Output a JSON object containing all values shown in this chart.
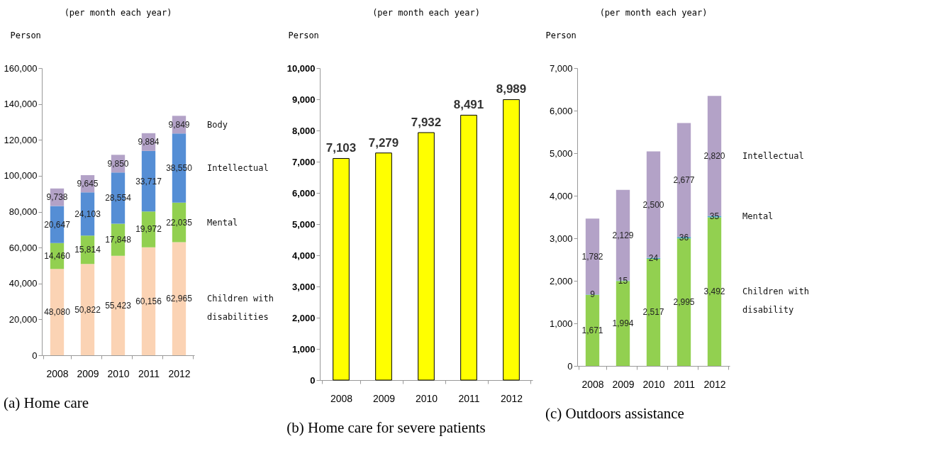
{
  "chart_data": [
    {
      "type": "bar",
      "title": "(a) Home care",
      "subtitle": "(per month each year)",
      "ylabel": "Person",
      "categories": [
        "2008",
        "2009",
        "2010",
        "2011",
        "2012"
      ],
      "stacked": true,
      "ylim": [
        0,
        160000
      ],
      "yticks": [
        {
          "value": 0,
          "label": "0"
        },
        {
          "value": 20000,
          "label": "20,000"
        },
        {
          "value": 40000,
          "label": "40,000"
        },
        {
          "value": 60000,
          "label": "60,000"
        },
        {
          "value": 80000,
          "label": "80,000"
        },
        {
          "value": 100000,
          "label": "100,000"
        },
        {
          "value": 120000,
          "label": "120,000"
        },
        {
          "value": 140000,
          "label": "140,000"
        },
        {
          "value": 160000,
          "label": "160,000"
        }
      ],
      "grid": false,
      "series": [
        {
          "name": "Children with disabilities",
          "color": "#fbd3b4",
          "values": [
            48080,
            50822,
            55423,
            60156,
            62965
          ],
          "value_labels": [
            "48,080",
            "50,822",
            "55,423",
            "60,156",
            "62,965"
          ]
        },
        {
          "name": "Mental",
          "color": "#92d050",
          "values": [
            14460,
            15814,
            17848,
            19972,
            22035
          ],
          "value_labels": [
            "14,460",
            "15,814",
            "17,848",
            "19,972",
            "22,035"
          ]
        },
        {
          "name": "Intellectual",
          "color": "#558ed5",
          "values": [
            20647,
            24103,
            28554,
            33717,
            38550
          ],
          "value_labels": [
            "20,647",
            "24,103",
            "28,554",
            "33,717",
            "38,550"
          ]
        },
        {
          "name": "Body",
          "color": "#b3a2c7",
          "values": [
            9738,
            9645,
            9850,
            9884,
            9849
          ],
          "value_labels": [
            "9,738",
            "9,645",
            "9,850",
            "9,884",
            "9,849"
          ]
        }
      ]
    },
    {
      "type": "bar",
      "title": "(b) Home care for severe patients",
      "subtitle": "(per month each year)",
      "ylabel": "Person",
      "categories": [
        "2008",
        "2009",
        "2010",
        "2011",
        "2012"
      ],
      "ylim": [
        0,
        10000
      ],
      "yticks": [
        {
          "value": 0,
          "label": "0"
        },
        {
          "value": 1000,
          "label": "1,000"
        },
        {
          "value": 2000,
          "label": "2,000"
        },
        {
          "value": 3000,
          "label": "3,000"
        },
        {
          "value": 4000,
          "label": "4,000"
        },
        {
          "value": 5000,
          "label": "5,000"
        },
        {
          "value": 6000,
          "label": "6,000"
        },
        {
          "value": 7000,
          "label": "7,000"
        },
        {
          "value": 8000,
          "label": "8,000"
        },
        {
          "value": 9000,
          "label": "9,000"
        },
        {
          "value": 10000,
          "label": "10,000"
        }
      ],
      "grid": false,
      "series": [
        {
          "color": "#ffff00",
          "values": [
            7103,
            7279,
            7932,
            8491,
            8989
          ],
          "value_labels": [
            "7,103",
            "7,279",
            "7,932",
            "8,491",
            "8,989"
          ]
        }
      ]
    },
    {
      "type": "bar",
      "title": "(c) Outdoors assistance",
      "subtitle": "(per month each year)",
      "ylabel": "Person",
      "categories": [
        "2008",
        "2009",
        "2010",
        "2011",
        "2012"
      ],
      "stacked": true,
      "ylim": [
        0,
        7000
      ],
      "yticks": [
        {
          "value": 0,
          "label": "0"
        },
        {
          "value": 1000,
          "label": "1,000"
        },
        {
          "value": 2000,
          "label": "2,000"
        },
        {
          "value": 3000,
          "label": "3,000"
        },
        {
          "value": 4000,
          "label": "4,000"
        },
        {
          "value": 5000,
          "label": "5,000"
        },
        {
          "value": 6000,
          "label": "6,000"
        },
        {
          "value": 7000,
          "label": "7,000"
        }
      ],
      "grid": false,
      "series": [
        {
          "name": "Children with disability",
          "color": "#92d050",
          "values": [
            1671,
            1994,
            2517,
            2995,
            3492
          ],
          "value_labels": [
            "1,671",
            "1,994",
            "2,517",
            "2,995",
            "3,492"
          ]
        },
        {
          "name": "Mental",
          "color": "#4bacc6",
          "values": [
            9,
            15,
            24,
            36,
            35
          ],
          "value_labels": [
            "9",
            "15",
            "24",
            "36",
            "35"
          ]
        },
        {
          "name": "Intellectual",
          "color": "#b3a2c7",
          "values": [
            1782,
            2129,
            2500,
            2677,
            2820
          ],
          "value_labels": [
            "1,782",
            "2,129",
            "2,500",
            "2,677",
            "2,820"
          ]
        }
      ]
    }
  ]
}
